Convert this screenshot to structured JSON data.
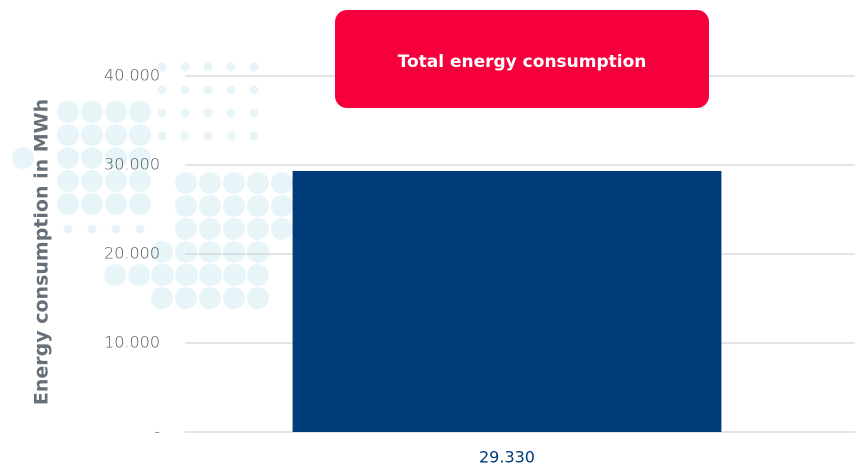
{
  "chart_data": {
    "type": "bar",
    "y_label": "Energy consumption in MWh",
    "categories": [
      null
    ],
    "series": [
      {
        "name": "Total energy consumption",
        "color": "#003b7a",
        "values": [
          29330
        ],
        "value_labels": [
          "29.330"
        ]
      }
    ],
    "ylim": [
      0,
      40000
    ],
    "yticks": [
      {
        "value": 0,
        "label": "-"
      },
      {
        "value": 10000,
        "label": "10.000"
      },
      {
        "value": 20000,
        "label": "20.000"
      },
      {
        "value": 30000,
        "label": "30.000"
      },
      {
        "value": 40000,
        "label": "40.000"
      }
    ],
    "grid": true
  }
}
